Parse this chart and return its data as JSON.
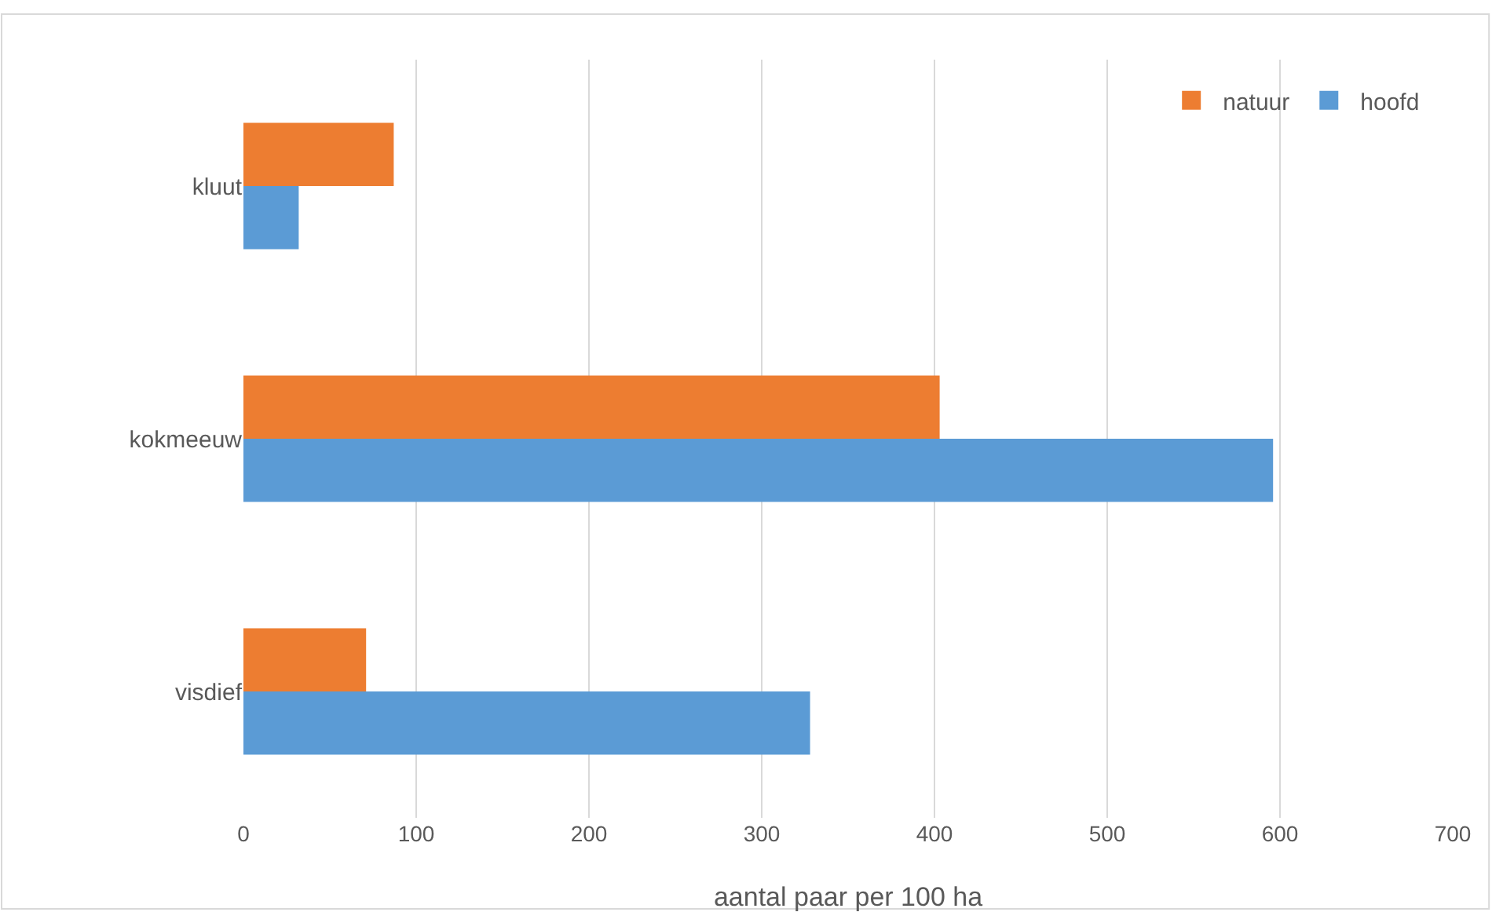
{
  "chart_data": {
    "type": "bar",
    "orientation": "horizontal",
    "categories": [
      "kluut",
      "kokmeeuw",
      "visdief"
    ],
    "series": [
      {
        "name": "natuur",
        "color": "#ed7d31",
        "values": [
          87,
          403,
          71
        ]
      },
      {
        "name": "hoofd",
        "color": "#5b9bd5",
        "values": [
          32,
          596,
          328
        ]
      }
    ],
    "xlabel": "aantal paar per 100 ha",
    "xlim": [
      0,
      700
    ],
    "xticks": [
      0,
      100,
      200,
      300,
      400,
      500,
      600,
      700
    ],
    "grid": "x",
    "legend": "top right"
  }
}
